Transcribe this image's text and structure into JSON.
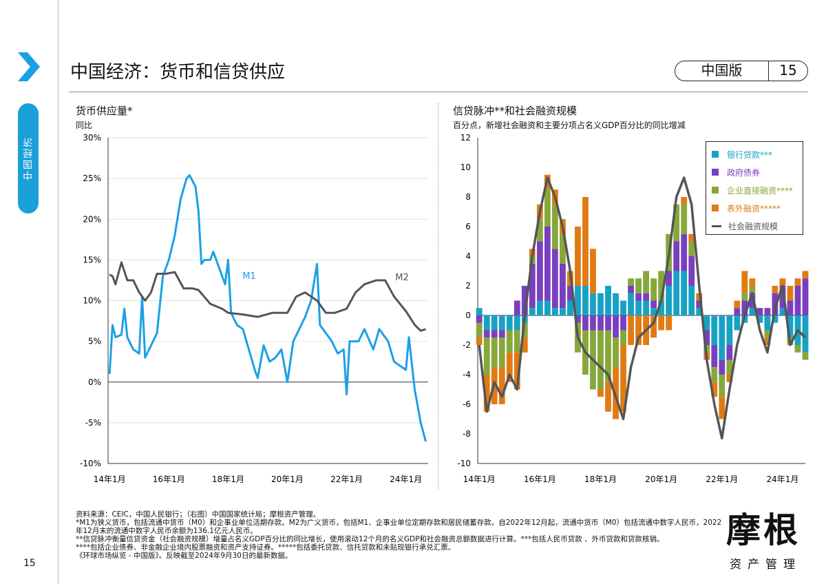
{
  "header": {
    "title": "中国经济：货币和信贷供应",
    "edition": "中国版",
    "page": "15"
  },
  "sidebar": {
    "tab": "中国经济",
    "page_number": "15"
  },
  "left": {
    "title": "货币供应量*",
    "subtitle": "同比"
  },
  "right": {
    "title": "信贷脉冲**和社会融资规模",
    "subtitle": "百分点，新增社会融资和主要分项占名义GDP百分比的同比增减"
  },
  "notes": [
    "资料来源：CEIC，中国人民银行；（右图）中国国家统计局；摩根资产管理。",
    "*M1为狭义货币，包括流通中货币（M0）和企事业单位活期存款。M2为广义货币，包括M1、企事业单位定期存款和居民储蓄存款。自2022年12月起，流通中货币（M0）包括流通中数字人民币，2022年12月末的流通中数字人民币余额为136.1亿元人民币。",
    "**信贷脉冲衡量信贷资金（社会融资规模）增量占名义GDP百分比的同比增长，使用滚动12个月的名义GDP和社会融资总额数据进行计算。***包括人民币贷款 、外币贷款和贷款核销。",
    "****包括企业债券、非金融企业境内股票融资和资产支持证券。*****包括委托贷款、信托贷款和未贴现银行承兑汇票。",
    "《环球市场纵览 - 中国版》。反映截至2024年9月30日的最新数据。"
  ],
  "logo": {
    "name": "摩根",
    "sub": "资产管理"
  },
  "chart_data": [
    {
      "type": "line",
      "title": "货币供应量*",
      "ylabel": "同比",
      "ylim": [
        -10,
        30
      ],
      "yticks": [
        "30%",
        "25%",
        "20%",
        "15%",
        "10%",
        "5%",
        "0%",
        "-5%",
        "-10%"
      ],
      "ytick_values": [
        30,
        25,
        20,
        15,
        10,
        5,
        0,
        -5,
        -10
      ],
      "xticks": [
        "14年1月",
        "16年1月",
        "18年1月",
        "20年1月",
        "22年1月",
        "24年1月"
      ],
      "xtick_values": [
        2014,
        2016,
        2018,
        2020,
        2022,
        2024
      ],
      "xlim": [
        2013.95,
        2024.75
      ],
      "series": [
        {
          "name": "M1",
          "color": "#1aa0e6",
          "points": [
            [
              2014.0,
              1
            ],
            [
              2014.1,
              7
            ],
            [
              2014.2,
              5.5
            ],
            [
              2014.4,
              5.8
            ],
            [
              2014.5,
              9
            ],
            [
              2014.6,
              5.5
            ],
            [
              2014.8,
              4
            ],
            [
              2015.0,
              3.5
            ],
            [
              2015.1,
              10.5
            ],
            [
              2015.2,
              3
            ],
            [
              2015.4,
              4.5
            ],
            [
              2015.6,
              6
            ],
            [
              2015.8,
              13
            ],
            [
              2016.0,
              15
            ],
            [
              2016.2,
              18
            ],
            [
              2016.4,
              22.5
            ],
            [
              2016.6,
              25
            ],
            [
              2016.7,
              25.4
            ],
            [
              2016.9,
              24
            ],
            [
              2017.0,
              21
            ],
            [
              2017.1,
              14.5
            ],
            [
              2017.2,
              15
            ],
            [
              2017.4,
              15
            ],
            [
              2017.5,
              16
            ],
            [
              2017.7,
              14
            ],
            [
              2017.9,
              12
            ],
            [
              2018.0,
              15
            ],
            [
              2018.1,
              8.5
            ],
            [
              2018.3,
              7
            ],
            [
              2018.5,
              6.5
            ],
            [
              2018.7,
              4
            ],
            [
              2018.9,
              1.5
            ],
            [
              2019.0,
              0.5
            ],
            [
              2019.2,
              4.5
            ],
            [
              2019.4,
              2.5
            ],
            [
              2019.6,
              3
            ],
            [
              2019.8,
              4
            ],
            [
              2020.0,
              0
            ],
            [
              2020.2,
              5
            ],
            [
              2020.4,
              6.5
            ],
            [
              2020.6,
              8
            ],
            [
              2020.8,
              10
            ],
            [
              2021.0,
              14.5
            ],
            [
              2021.1,
              7
            ],
            [
              2021.3,
              6
            ],
            [
              2021.5,
              5
            ],
            [
              2021.7,
              3.5
            ],
            [
              2021.9,
              4
            ],
            [
              2022.0,
              -1.5
            ],
            [
              2022.1,
              5
            ],
            [
              2022.4,
              5
            ],
            [
              2022.6,
              6.5
            ],
            [
              2022.9,
              4
            ],
            [
              2023.1,
              6.5
            ],
            [
              2023.4,
              5
            ],
            [
              2023.6,
              2.5
            ],
            [
              2023.8,
              2
            ],
            [
              2024.0,
              1.5
            ],
            [
              2024.1,
              5.5
            ],
            [
              2024.3,
              -1
            ],
            [
              2024.5,
              -5
            ],
            [
              2024.67,
              -7.3
            ]
          ]
        },
        {
          "name": "M2",
          "color": "#555555",
          "points": [
            [
              2014.0,
              13.2
            ],
            [
              2014.1,
              13
            ],
            [
              2014.2,
              12
            ],
            [
              2014.4,
              14.7
            ],
            [
              2014.6,
              12.5
            ],
            [
              2014.8,
              12.5
            ],
            [
              2015.0,
              11
            ],
            [
              2015.2,
              10
            ],
            [
              2015.4,
              11
            ],
            [
              2015.6,
              13.3
            ],
            [
              2015.9,
              13.3
            ],
            [
              2016.2,
              13.5
            ],
            [
              2016.5,
              11.5
            ],
            [
              2016.8,
              11.5
            ],
            [
              2017.0,
              11.3
            ],
            [
              2017.4,
              9.6
            ],
            [
              2017.8,
              9
            ],
            [
              2018.0,
              8.5
            ],
            [
              2018.5,
              8.3
            ],
            [
              2019.0,
              8
            ],
            [
              2019.5,
              8.5
            ],
            [
              2020.0,
              8.5
            ],
            [
              2020.3,
              10.5
            ],
            [
              2020.6,
              11
            ],
            [
              2021.0,
              10
            ],
            [
              2021.3,
              8.5
            ],
            [
              2021.6,
              8.5
            ],
            [
              2022.0,
              9
            ],
            [
              2022.3,
              11
            ],
            [
              2022.6,
              12
            ],
            [
              2023.0,
              12.5
            ],
            [
              2023.3,
              12.5
            ],
            [
              2023.6,
              10.5
            ],
            [
              2024.0,
              8.7
            ],
            [
              2024.3,
              7
            ],
            [
              2024.5,
              6.3
            ],
            [
              2024.67,
              6.5
            ]
          ]
        }
      ]
    },
    {
      "type": "bar",
      "stacked": true,
      "title": "信贷脉冲**和社会融资规模",
      "ylabel": "百分点，新增社会融资和主要分项占名义GDP百分比的同比增减",
      "ylim": [
        -10,
        12
      ],
      "yticks": [
        "12",
        "10",
        "8",
        "6",
        "4",
        "2",
        "0",
        "-2",
        "-4",
        "-6",
        "-8",
        "-10"
      ],
      "ytick_values": [
        12,
        10,
        8,
        6,
        4,
        2,
        0,
        -2,
        -4,
        -6,
        -8,
        -10
      ],
      "xticks": [
        "14年1月",
        "16年1月",
        "18年1月",
        "20年1月",
        "22年1月",
        "24年1月"
      ],
      "xtick_values": [
        2014,
        2016,
        2018,
        2020,
        2022,
        2024
      ],
      "xlim": [
        2013.95,
        2024.75
      ],
      "x_start": 2014.0,
      "x_step": 0.25,
      "series": [
        {
          "name": "银行贷款***",
          "color": "#17a2c4",
          "values": [
            0.5,
            -1,
            -1,
            -1,
            -1,
            -1,
            -0.5,
            0.5,
            1,
            1,
            0.5,
            0.5,
            1,
            2,
            2,
            1.5,
            1.5,
            2,
            1.5,
            1,
            1.5,
            1,
            1,
            0.5,
            1,
            2,
            3,
            3,
            2,
            0.5,
            -1,
            -2,
            -3,
            -2,
            -1,
            -0.5,
            0.5,
            -0.5,
            -1,
            -0.5,
            0.5,
            -1.5,
            -2,
            -2.5
          ]
        },
        {
          "name": "政府债券",
          "color": "#7a3fbf",
          "values": [
            -0.5,
            -0.5,
            -0.5,
            -0.5,
            0,
            1,
            2,
            3,
            4,
            5,
            4,
            3,
            1,
            -0.5,
            -1,
            -1,
            -1,
            -1,
            -1.5,
            -1,
            0.5,
            0.5,
            0.5,
            0.5,
            0,
            1,
            2,
            2.5,
            2,
            0.5,
            -1,
            -1.5,
            -1,
            -1,
            0.5,
            1,
            1,
            0.5,
            0.5,
            1.5,
            1.5,
            1,
            2,
            2.5
          ]
        },
        {
          "name": "企业直接融资****",
          "color": "#86a83a",
          "values": [
            -1,
            -2.5,
            -2,
            -2,
            -1.5,
            -1.5,
            -1,
            0.5,
            1.5,
            2.5,
            3,
            2,
            0,
            -2,
            -3,
            -4,
            -4,
            -3.5,
            -2,
            -1,
            0.5,
            1,
            1.5,
            1.5,
            2,
            2.5,
            2.5,
            2,
            1,
            0,
            -0.5,
            -1,
            -1.5,
            -1,
            0,
            0.5,
            0.5,
            0,
            -0.5,
            0,
            0,
            -0.5,
            -0.5,
            -0.5
          ]
        },
        {
          "name": "表外融资*****",
          "color": "#e07b14",
          "values": [
            -0.5,
            -2.5,
            -2.5,
            -2.5,
            -2,
            -2.5,
            -1,
            0.5,
            1,
            1,
            1,
            1,
            1,
            4,
            6,
            3,
            -0.5,
            -2,
            -3.5,
            -4.5,
            -2,
            -2,
            -2,
            -1.5,
            -1,
            -1,
            0,
            0.5,
            0.5,
            0.5,
            -0.5,
            -1,
            -1.5,
            -0.5,
            0.5,
            1.5,
            0.5,
            0,
            -0.5,
            0.5,
            0.5,
            1,
            0.5,
            0.5
          ]
        },
        {
          "name": "社会融资规模",
          "type": "line",
          "color": "#555555",
          "values": [
            -2,
            -6.5,
            -4.5,
            -5.5,
            -4,
            -5,
            0,
            4,
            7,
            9.3,
            8,
            6,
            3,
            -1.5,
            -2.5,
            -3,
            -3.5,
            -4,
            -5.5,
            -7,
            -3.5,
            -1.5,
            -1,
            -0.5,
            1,
            4,
            8,
            9.3,
            7.5,
            2,
            -3,
            -6,
            -8.3,
            -5,
            -2,
            0,
            1.5,
            -1,
            -2.5,
            0.5,
            2,
            -2,
            -1,
            -1.5
          ]
        }
      ]
    }
  ]
}
